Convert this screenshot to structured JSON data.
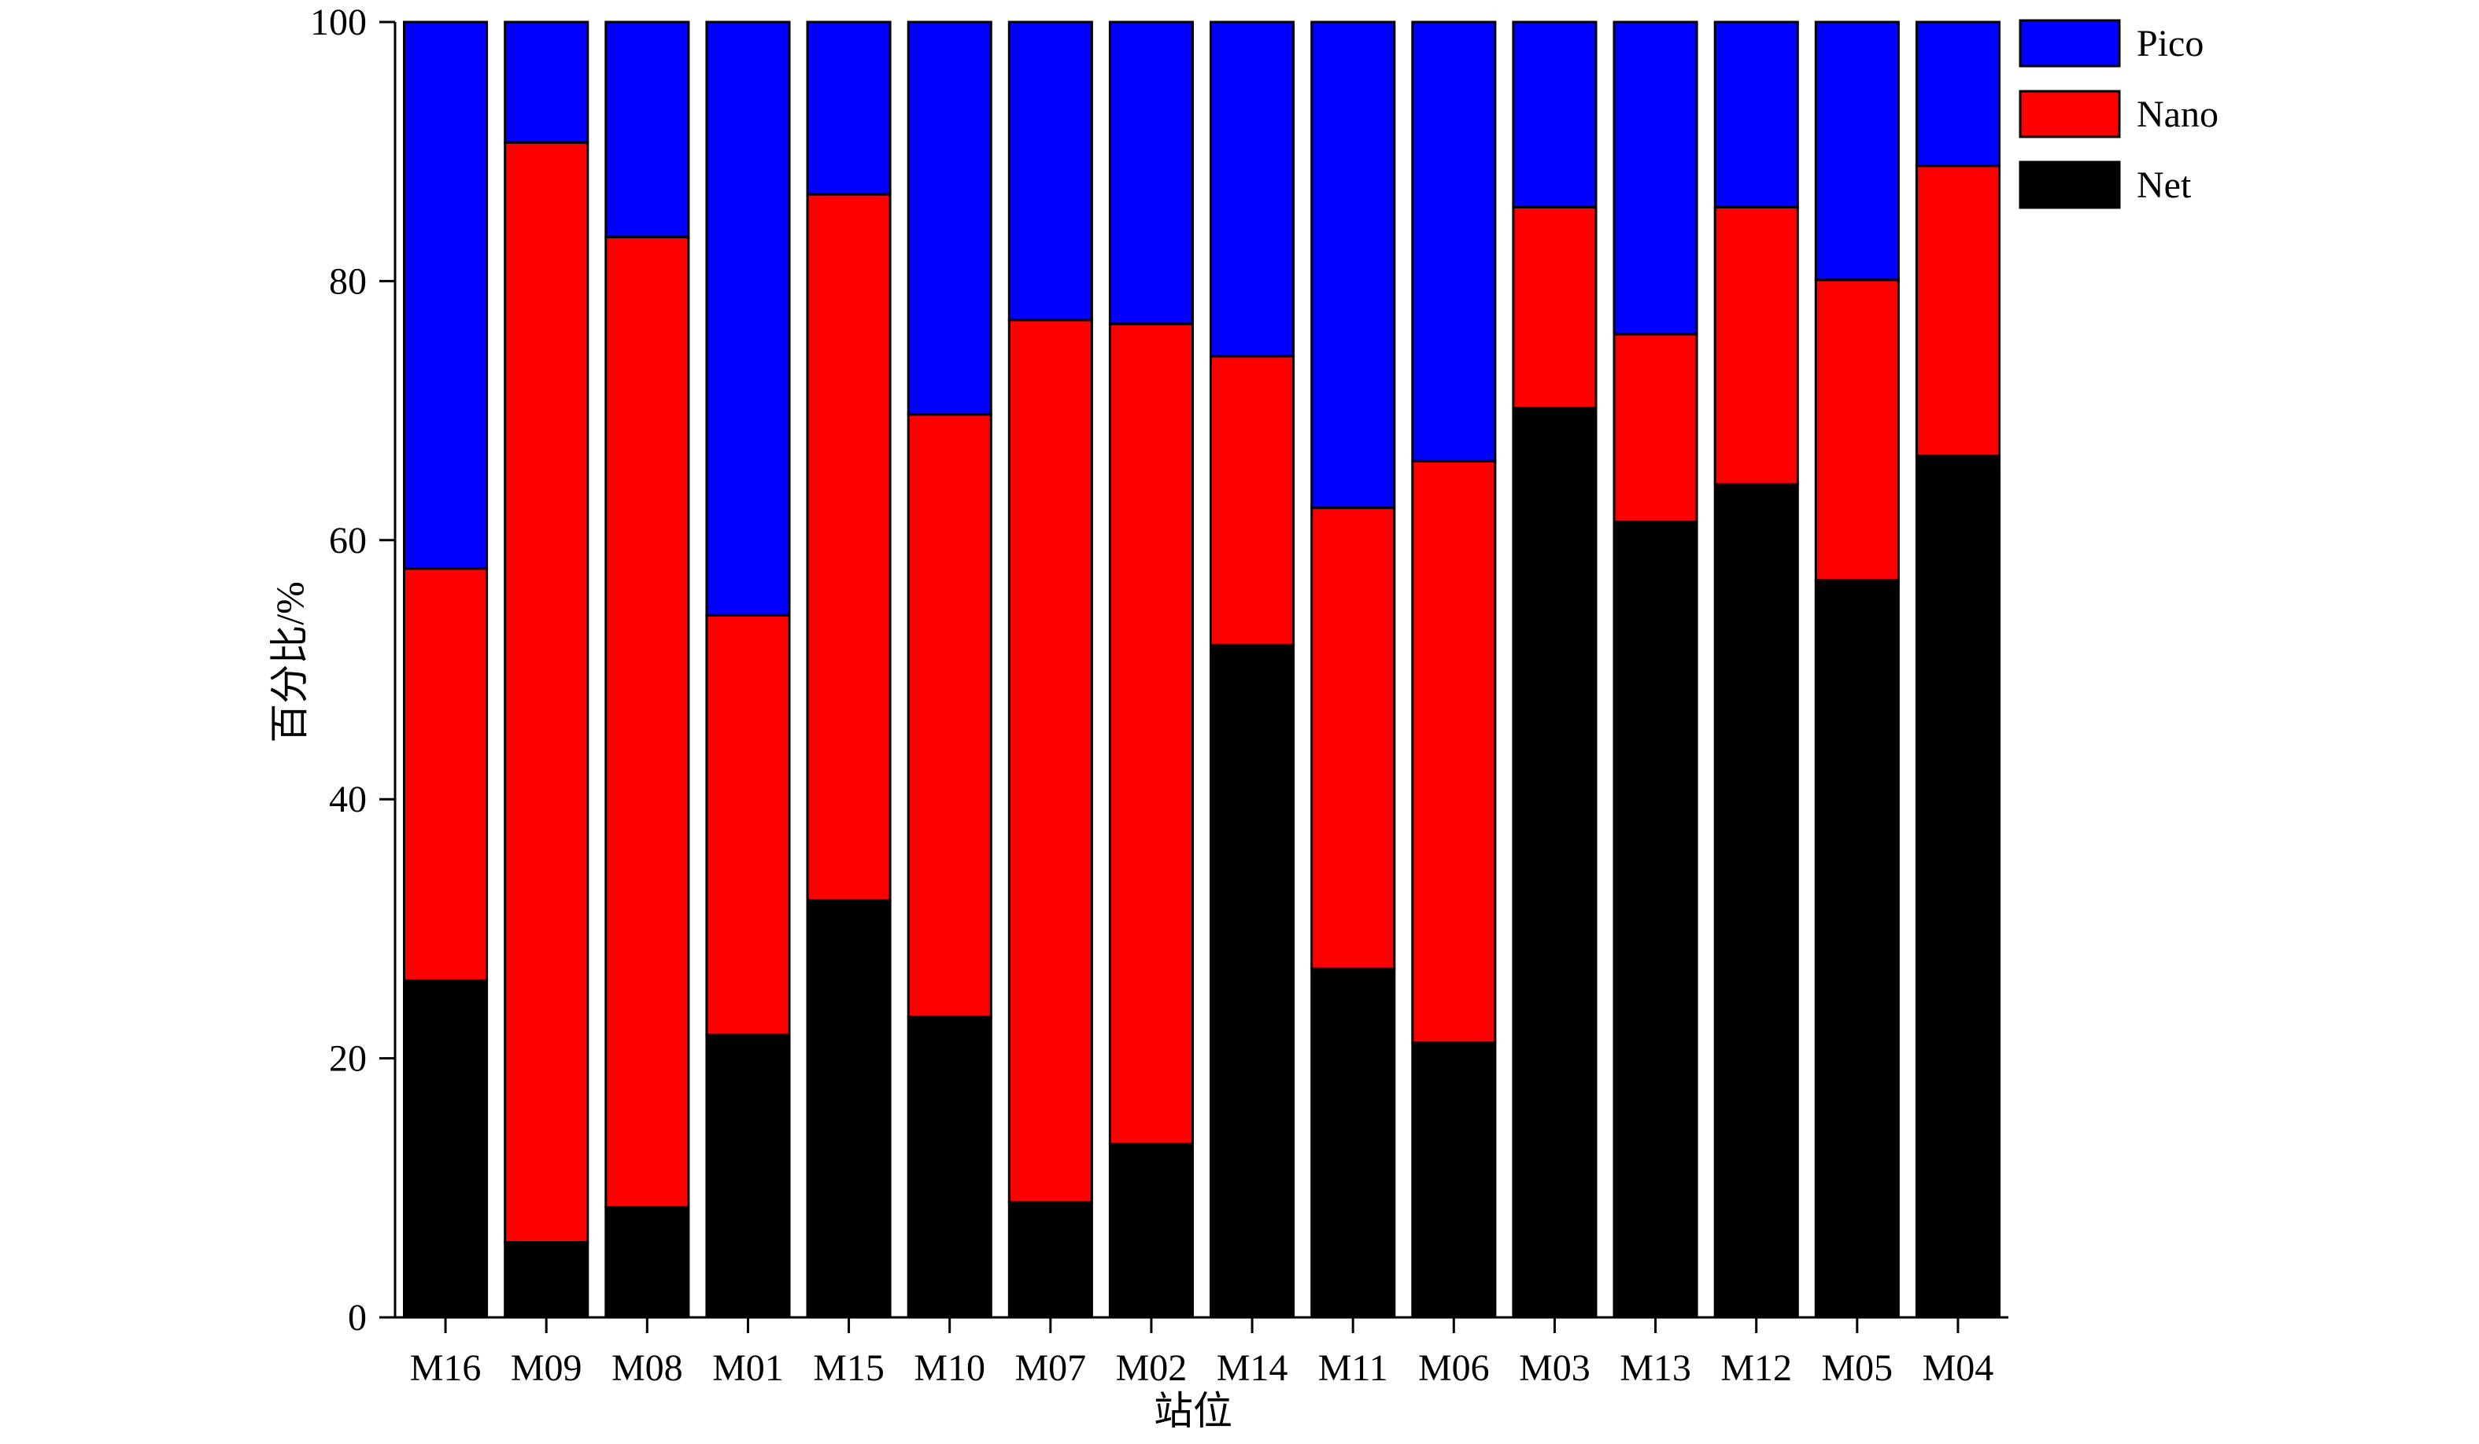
{
  "chart_data": {
    "type": "bar",
    "stacked": true,
    "percent": true,
    "xlabel": "站位",
    "ylabel": "百分比/%",
    "ylim": [
      0,
      100
    ],
    "yticks": [
      0,
      20,
      40,
      60,
      80,
      100
    ],
    "categories": [
      "M16",
      "M09",
      "M08",
      "M01",
      "M15",
      "M10",
      "M07",
      "M02",
      "M14",
      "M11",
      "M06",
      "M03",
      "M13",
      "M12",
      "M05",
      "M04"
    ],
    "series": [
      {
        "name": "Net",
        "color": "#000000",
        "values": [
          26.0,
          5.8,
          8.5,
          21.8,
          32.2,
          23.2,
          8.9,
          13.4,
          51.9,
          26.9,
          21.2,
          70.2,
          61.4,
          64.3,
          56.9,
          66.5
        ]
      },
      {
        "name": "Nano",
        "color": "#ff0000",
        "values": [
          31.8,
          84.9,
          74.9,
          32.4,
          54.5,
          46.5,
          68.1,
          63.3,
          22.3,
          35.6,
          44.9,
          15.5,
          14.5,
          21.4,
          23.2,
          22.4
        ]
      },
      {
        "name": "Pico",
        "color": "#0000ff",
        "values": [
          42.2,
          9.3,
          16.6,
          45.8,
          13.3,
          30.3,
          23.0,
          23.3,
          25.8,
          37.5,
          33.9,
          14.3,
          24.1,
          14.3,
          19.9,
          11.1
        ]
      }
    ],
    "legend": {
      "placement": "top-right",
      "order": [
        "Pico",
        "Nano",
        "Net"
      ]
    },
    "grid": false
  }
}
